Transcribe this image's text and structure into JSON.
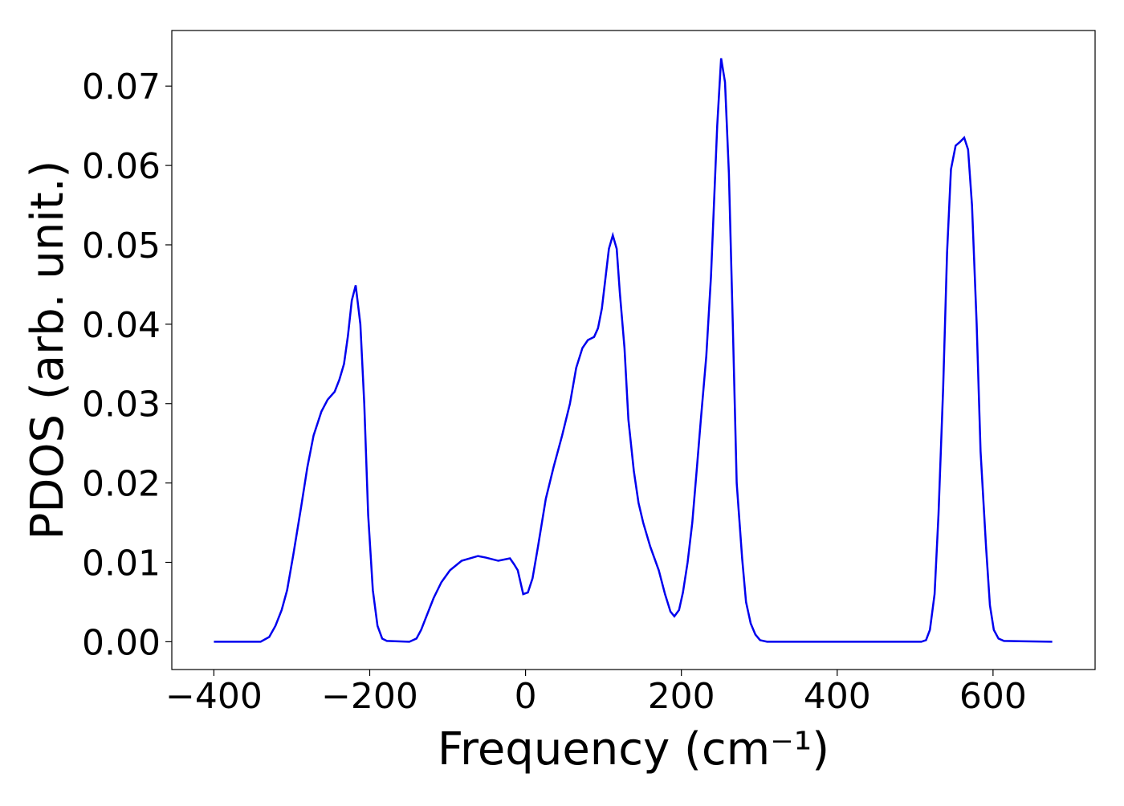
{
  "chart_data": {
    "type": "line",
    "xlabel": "Frequency (cm⁻¹)",
    "ylabel": "PDOS (arb. unit.)",
    "xlim": [
      -454,
      731
    ],
    "ylim": [
      -0.0035,
      0.077
    ],
    "xticks": [
      {
        "value": -400,
        "label": "−400"
      },
      {
        "value": -200,
        "label": "−200"
      },
      0,
      200,
      400,
      600
    ],
    "yticks": [
      {
        "value": 0,
        "label": "0.00"
      },
      0.01,
      0.02,
      0.03,
      0.04,
      0.05,
      0.06,
      0.07
    ],
    "grid": false,
    "series": [
      {
        "color": "#0000ee",
        "x": [
          -400,
          -340,
          -329,
          -321,
          -313,
          -306,
          -298,
          -288,
          -280,
          -272,
          -267,
          -262,
          -254,
          -245,
          -239,
          -233,
          -228,
          -223,
          -218,
          -212,
          -207,
          -202,
          -196,
          -190,
          -184,
          -178,
          -149,
          -140,
          -134,
          -128,
          -118,
          -108,
          -97,
          -82,
          -61,
          -51,
          -35,
          -20,
          -15,
          -10,
          -3,
          3,
          9,
          16,
          26,
          36,
          47,
          57,
          65,
          73,
          80,
          88,
          93,
          98,
          107,
          112,
          117,
          121,
          127,
          132,
          139,
          145,
          151,
          160,
          171,
          179,
          186,
          191,
          197,
          202,
          208,
          214,
          220,
          225,
          232,
          238,
          246,
          251,
          256,
          261,
          266,
          271,
          278,
          283,
          289,
          295,
          301,
          310,
          508,
          514,
          519,
          525,
          530,
          536,
          541,
          546,
          552,
          558,
          563,
          568,
          573,
          579,
          584,
          591,
          596,
          601,
          607,
          614,
          676
        ],
        "values": [
          0,
          0,
          0.0006,
          0.002,
          0.004,
          0.0065,
          0.011,
          0.017,
          0.022,
          0.026,
          0.0275,
          0.029,
          0.0305,
          0.0315,
          0.033,
          0.035,
          0.0385,
          0.043,
          0.0449,
          0.04,
          0.03,
          0.016,
          0.0065,
          0.002,
          0.0004,
          0.0001,
          0,
          0.0004,
          0.0015,
          0.003,
          0.0055,
          0.0075,
          0.009,
          0.0102,
          0.0108,
          0.0106,
          0.0102,
          0.0105,
          0.0098,
          0.009,
          0.006,
          0.0062,
          0.008,
          0.012,
          0.018,
          0.022,
          0.026,
          0.03,
          0.0345,
          0.037,
          0.038,
          0.0384,
          0.0395,
          0.042,
          0.0495,
          0.0512,
          0.0495,
          0.044,
          0.037,
          0.028,
          0.0215,
          0.0175,
          0.015,
          0.012,
          0.009,
          0.006,
          0.0038,
          0.0032,
          0.004,
          0.0062,
          0.01,
          0.015,
          0.022,
          0.028,
          0.036,
          0.046,
          0.065,
          0.0735,
          0.0705,
          0.059,
          0.04,
          0.02,
          0.0105,
          0.005,
          0.0023,
          0.0009,
          0.0002,
          0,
          0,
          0.0002,
          0.0015,
          0.006,
          0.016,
          0.032,
          0.049,
          0.0595,
          0.0625,
          0.063,
          0.0635,
          0.062,
          0.055,
          0.04,
          0.024,
          0.012,
          0.0046,
          0.0015,
          0.0004,
          0.0001,
          0
        ]
      }
    ]
  }
}
